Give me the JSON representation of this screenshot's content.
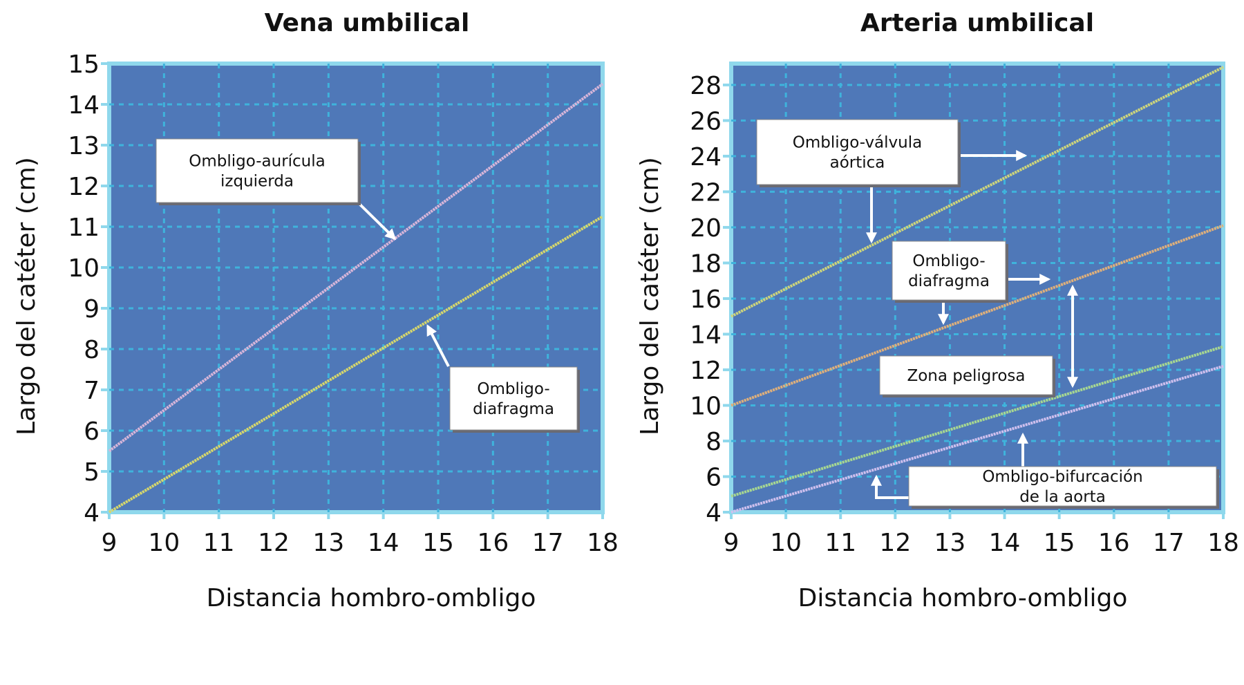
{
  "chart_data": [
    {
      "type": "line",
      "title": "Vena umbilical",
      "xlabel": "Distancia hombro-ombligo",
      "ylabel": "Largo del catéter (cm)",
      "xlim": [
        9,
        18
      ],
      "ylim": [
        4,
        15
      ],
      "xticks": [
        9,
        10,
        11,
        12,
        13,
        14,
        15,
        16,
        17,
        18
      ],
      "yticks": [
        4,
        5,
        6,
        7,
        8,
        9,
        10,
        11,
        12,
        13,
        14,
        15
      ],
      "grid": true,
      "series": [
        {
          "name": "Ombligo-aurícula izquierda",
          "color": "#d9b6d9",
          "x": [
            9,
            18
          ],
          "y": [
            5.5,
            14.5
          ]
        },
        {
          "name": "Ombligo-diafragma",
          "color": "#d8d86a",
          "x": [
            9,
            18
          ],
          "y": [
            4,
            11.25
          ]
        }
      ],
      "annotations": [
        {
          "lines": [
            "Ombligo-aurícula",
            "izquierda"
          ]
        },
        {
          "lines": [
            "Ombligo-",
            "diafragma"
          ]
        }
      ]
    },
    {
      "type": "line",
      "title": "Arteria umbilical",
      "xlabel": "Distancia hombro-ombligo",
      "ylabel": "Largo del catéter (cm)",
      "xlim": [
        9,
        18
      ],
      "ylim": [
        4,
        29.2
      ],
      "xticks": [
        9,
        10,
        11,
        12,
        13,
        14,
        15,
        16,
        17,
        18
      ],
      "yticks": [
        4,
        6,
        8,
        10,
        12,
        14,
        16,
        18,
        20,
        22,
        24,
        26,
        28
      ],
      "grid": true,
      "series": [
        {
          "name": "Ombligo-válvula aórtica",
          "color": "#cfd67a",
          "x": [
            9,
            18
          ],
          "y": [
            15,
            29
          ]
        },
        {
          "name": "Ombligo-diafragma",
          "color": "#e0b07a",
          "x": [
            9,
            18
          ],
          "y": [
            10,
            20.1
          ]
        },
        {
          "name": "Zona peligrosa (límite inferior)",
          "color": "#a8d890",
          "x": [
            9,
            18
          ],
          "y": [
            4.9,
            13.3
          ]
        },
        {
          "name": "Ombligo-bifurcación de la aorta",
          "color": "#d0c0ee",
          "x": [
            9,
            18
          ],
          "y": [
            4,
            12.2
          ]
        }
      ],
      "annotations": [
        {
          "lines": [
            "Ombligo-válvula",
            "aórtica"
          ]
        },
        {
          "lines": [
            "Ombligo-",
            "diafragma"
          ]
        },
        {
          "lines": [
            "Zona peligrosa"
          ]
        },
        {
          "lines": [
            "Ombligo-bifurcación",
            "de la aorta"
          ]
        }
      ]
    }
  ],
  "colors": {
    "plot_bg": "#4f78b8",
    "frame": "#8fd8ec",
    "grid": "#3fb3dc",
    "box": "#ffffff",
    "arrow": "#ffffff"
  }
}
